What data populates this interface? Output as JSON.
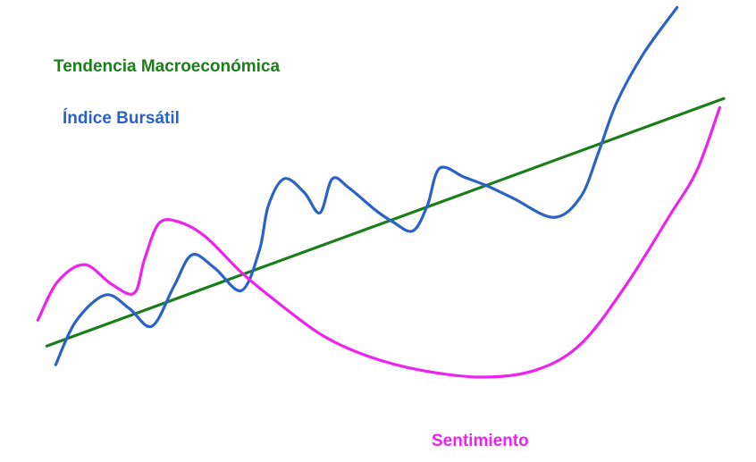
{
  "chart_data": {
    "type": "line",
    "xlim": [
      0,
      100
    ],
    "ylim": [
      0,
      102
    ],
    "series": [
      {
        "name": "Tendencia Macroeconómica",
        "color": "#1b7d1b",
        "x": [
          1.6,
          100
        ],
        "values": [
          10.2,
          76.2
        ]
      },
      {
        "name": "Índice Bursátil",
        "color": "#2a62c8",
        "x": [
          2.9,
          5.8,
          10.1,
          13.6,
          16.9,
          20.1,
          22.7,
          26.0,
          29.9,
          32.5,
          33.8,
          36.1,
          39.0,
          41.3,
          43.1,
          45.5,
          49.4,
          51.9,
          54.8,
          56.9,
          58.7,
          62.3,
          65.6,
          69.5,
          75.3,
          79.2,
          81.8,
          84.4,
          88.3,
          93.2
        ],
        "values": [
          5.2,
          16.7,
          23.8,
          20.2,
          15.5,
          26.2,
          34.5,
          31.0,
          25.0,
          35.7,
          47.6,
          54.8,
          51.2,
          45.7,
          54.8,
          52.4,
          46.4,
          43.3,
          40.9,
          47.6,
          57.6,
          55.2,
          52.9,
          49.5,
          44.5,
          50.0,
          61.9,
          75.0,
          88.1,
          100.5
        ]
      },
      {
        "name": "Sentimiento",
        "color": "#ee22ee",
        "x": [
          0.3,
          3.2,
          7.1,
          11.0,
          14.3,
          15.8,
          17.9,
          20.8,
          24.7,
          29.9,
          35.1,
          41.6,
          48.1,
          55.8,
          64.9,
          72.7,
          79.2,
          85.7,
          92.2,
          96.1,
          99.4
        ],
        "values": [
          17.1,
          27.4,
          31.9,
          26.7,
          24.3,
          33.3,
          42.9,
          43.3,
          39.3,
          29.8,
          21.9,
          13.1,
          7.6,
          3.8,
          1.9,
          3.8,
          10.7,
          26.2,
          45.2,
          57.1,
          73.8
        ]
      }
    ]
  }
}
